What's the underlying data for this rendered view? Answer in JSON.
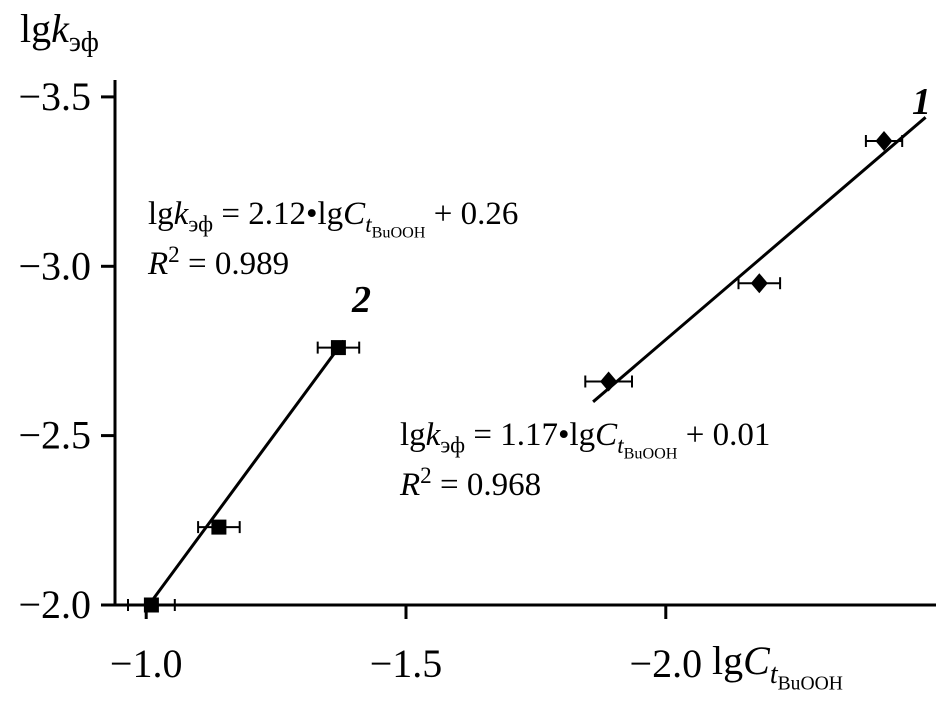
{
  "chart_data": {
    "type": "scatter",
    "title": "",
    "background": "#ffffff",
    "axis_color": "#000000",
    "grid": false,
    "x_axis": {
      "label": "lgCt(BuOOH)",
      "label_parts": {
        "lg": "lg",
        "sym": "C",
        "sub_t": "t",
        "sub_2": "BuOOH"
      },
      "range": [
        -0.94,
        -2.52
      ],
      "ticks": [
        -1.0,
        -1.5,
        -2.0
      ],
      "tick_labels": [
        "−1.0",
        "−1.5",
        "−2.0"
      ]
    },
    "y_axis": {
      "label": "lgk(эф)",
      "label_parts": {
        "lg": "lg",
        "sym": "k",
        "sub": "эф"
      },
      "range": [
        -2.0,
        -3.55
      ],
      "ticks": [
        -2.0,
        -2.5,
        -3.0,
        -3.5
      ],
      "tick_labels": [
        "−2.0",
        "−2.5",
        "−3.0",
        "−3.5"
      ]
    },
    "series": [
      {
        "name": "1",
        "marker": "diamond",
        "color": "#000000",
        "points": [
          {
            "x": -1.89,
            "y": -2.66,
            "xerr": 0.045
          },
          {
            "x": -2.18,
            "y": -2.95,
            "xerr": 0.04
          },
          {
            "x": -2.42,
            "y": -3.37,
            "xerr": 0.035
          }
        ],
        "trendline": {
          "x1": -1.86,
          "y1": -2.6,
          "x2": -2.5,
          "y2": -3.44
        },
        "fit": {
          "slope": 1.17,
          "intercept": 0.01,
          "r_squared": 0.968
        },
        "equation": {
          "lg1": "lg",
          "k": "k",
          "k_sub": "эф",
          "mid": " = 1.17•lg",
          "c": "C",
          "t": "t",
          "t_sub": "BuOOH",
          "tail": " + 0.01",
          "r": "R",
          "r_sup": "2",
          "r_val": " = 0.968"
        }
      },
      {
        "name": "2",
        "marker": "square",
        "color": "#000000",
        "points": [
          {
            "x": -1.01,
            "y": -2.0,
            "xerr": 0.045
          },
          {
            "x": -1.14,
            "y": -2.23,
            "xerr": 0.04
          },
          {
            "x": -1.37,
            "y": -2.76,
            "xerr": 0.04
          }
        ],
        "trendline": {
          "x1": -1.005,
          "y1": -2.0,
          "x2": -1.38,
          "y2": -2.78
        },
        "fit": {
          "slope": 2.12,
          "intercept": 0.26,
          "r_squared": 0.989
        },
        "equation": {
          "lg1": "lg",
          "k": "k",
          "k_sub": "эф",
          "mid": " = 2.12•lg",
          "c": "C",
          "t": "t",
          "t_sub": "BuOOH",
          "tail": " + 0.26",
          "r": "R",
          "r_sup": "2",
          "r_val": " = 0.989"
        }
      }
    ]
  }
}
